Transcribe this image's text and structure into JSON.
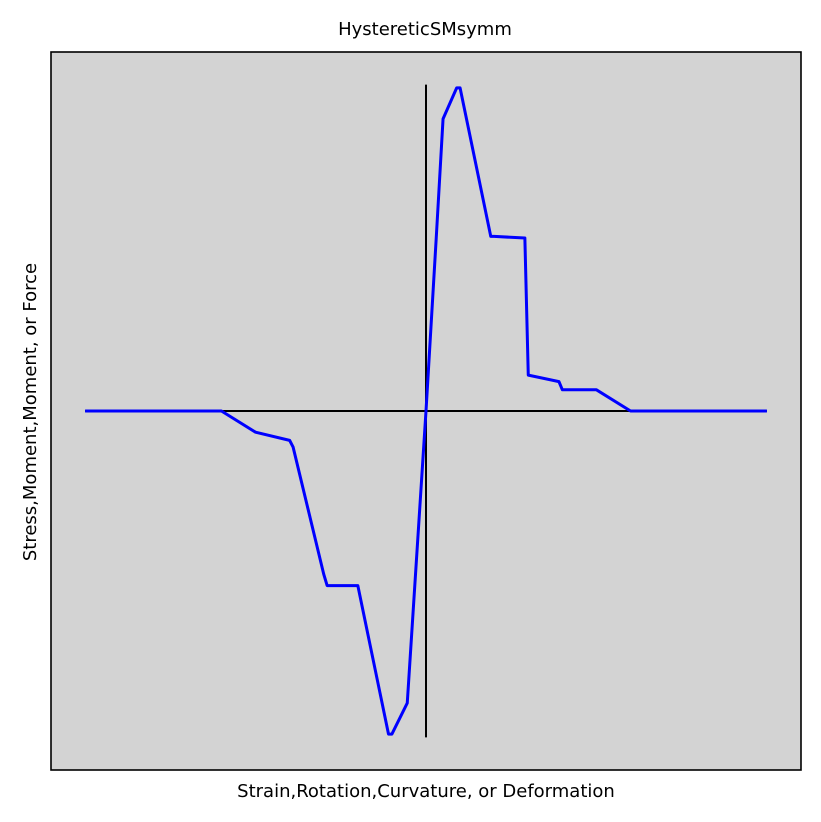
{
  "chart_data": {
    "type": "line",
    "title": "HystereticSMsymm",
    "xlabel": "Strain,Rotation,Curvature, or Deformation",
    "ylabel": "Stress,Moment,Moment, or Force",
    "xlim": [
      -1.1,
      1.1
    ],
    "ylim": [
      -1.1,
      1.1
    ],
    "grid": false,
    "ticks": false,
    "colors": {
      "background": "#ffffff",
      "plot_area": "#d3d3d3",
      "series": "#0000ff",
      "axes_lines": "#000000"
    },
    "reference_lines": {
      "horizontal": {
        "y": 0,
        "x_range": [
          -1,
          1
        ]
      },
      "vertical": {
        "x": 0,
        "y_range": [
          -1,
          1
        ]
      }
    },
    "series": [
      {
        "color": "#0000ff",
        "x": [
          -1.0,
          -0.6,
          -0.5,
          -0.4,
          -0.39,
          -0.3,
          -0.29,
          -0.2,
          -0.11,
          -0.1,
          -0.055,
          0.0,
          0.03,
          0.05,
          0.09,
          0.1,
          0.19,
          0.2,
          0.29,
          0.3,
          0.39,
          0.4,
          0.5,
          0.6,
          1.0
        ],
        "y": [
          0.0,
          0.0,
          -0.065,
          -0.09,
          -0.11,
          -0.5,
          -0.535,
          -0.535,
          -0.99,
          -0.99,
          -0.895,
          0.0,
          0.53,
          0.895,
          0.99,
          0.99,
          0.535,
          0.535,
          0.53,
          0.11,
          0.09,
          0.065,
          0.065,
          0.0,
          0.0
        ]
      }
    ]
  }
}
